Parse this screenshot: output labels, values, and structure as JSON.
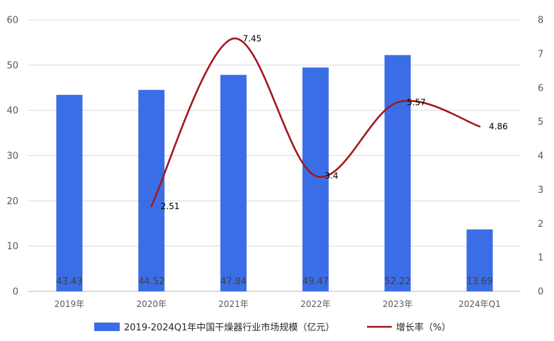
{
  "chart_data": {
    "type": "bar",
    "categories": [
      "2019年",
      "2020年",
      "2021年",
      "2022年",
      "2023年",
      "2024年Q1"
    ],
    "series": [
      {
        "name": "2019-2024Q1年中国干燥器行业市场规模（亿元）",
        "type": "bar",
        "axis": "left",
        "values": [
          43.43,
          44.52,
          47.84,
          49.47,
          52.22,
          13.69
        ],
        "color": "#3b6ee6"
      },
      {
        "name": "增长率（%）",
        "type": "line",
        "axis": "right",
        "values": [
          null,
          2.51,
          7.45,
          3.4,
          5.57,
          4.86
        ],
        "labels": [
          "",
          "2.51",
          "7.45",
          "3.4",
          "5.57",
          "4.86"
        ],
        "color": "#a0191e"
      }
    ],
    "y_left": {
      "min": 0,
      "max": 60,
      "ticks": [
        "0",
        "10",
        "20",
        "30",
        "40",
        "50",
        "60"
      ]
    },
    "y_right": {
      "min": 0,
      "max": 8,
      "ticks": [
        "0",
        "1",
        "2",
        "3",
        "4",
        "5",
        "6",
        "7",
        "8"
      ]
    },
    "bar_labels": [
      "43.43",
      "44.52",
      "47.84",
      "49.47",
      "52.22",
      "13.69"
    ],
    "grid": true,
    "legend": "bottom"
  }
}
